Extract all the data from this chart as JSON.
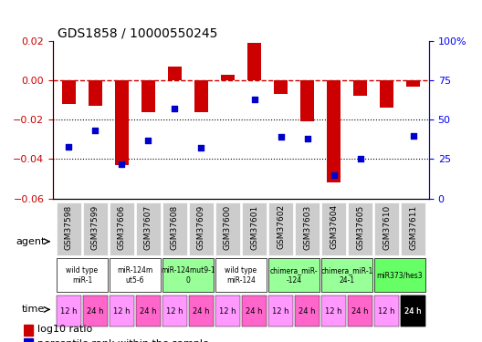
{
  "title": "GDS1858 / 10000550245",
  "samples": [
    "GSM37598",
    "GSM37599",
    "GSM37606",
    "GSM37607",
    "GSM37608",
    "GSM37609",
    "GSM37600",
    "GSM37601",
    "GSM37602",
    "GSM37603",
    "GSM37604",
    "GSM37605",
    "GSM37610",
    "GSM37611"
  ],
  "log10_ratio": [
    -0.012,
    -0.013,
    -0.043,
    -0.016,
    0.007,
    -0.016,
    0.003,
    0.019,
    -0.007,
    -0.021,
    -0.052,
    -0.008,
    -0.014,
    -0.003
  ],
  "percentile_rank": [
    33,
    43,
    22,
    37,
    57,
    32,
    null,
    63,
    39,
    38,
    15,
    25,
    null,
    40
  ],
  "ylim_left": [
    -0.06,
    0.02
  ],
  "ylim_right": [
    0,
    100
  ],
  "yticks_left": [
    -0.06,
    -0.04,
    -0.02,
    0,
    0.02
  ],
  "yticks_right": [
    0,
    25,
    50,
    75,
    100
  ],
  "agent_groups": [
    {
      "label": "wild type\nmiR-1",
      "cols": [
        0,
        1
      ],
      "color": "#ffffff"
    },
    {
      "label": "miR-124m\nut5-6",
      "cols": [
        2,
        3
      ],
      "color": "#ffffff"
    },
    {
      "label": "miR-124mut9-1\n0",
      "cols": [
        4,
        5
      ],
      "color": "#99ff99"
    },
    {
      "label": "wild type\nmiR-124",
      "cols": [
        6,
        7
      ],
      "color": "#ffffff"
    },
    {
      "label": "chimera_miR-\n-124",
      "cols": [
        8,
        9
      ],
      "color": "#99ff99"
    },
    {
      "label": "chimera_miR-1\n24-1",
      "cols": [
        10,
        11
      ],
      "color": "#99ff99"
    },
    {
      "label": "miR373/hes3",
      "cols": [
        12,
        13
      ],
      "color": "#66ff66"
    }
  ],
  "time_labels": [
    "12 h",
    "24 h",
    "12 h",
    "24 h",
    "12 h",
    "24 h",
    "12 h",
    "24 h",
    "12 h",
    "24 h",
    "12 h",
    "24 h",
    "12 h",
    "24 h"
  ],
  "time_colors": [
    "#ff99ff",
    "#ff66ff",
    "#ff99ff",
    "#ff66ff",
    "#ff99ff",
    "#ff66ff",
    "#ff99ff",
    "#ff66ff",
    "#ff99ff",
    "#ff66ff",
    "#ff99ff",
    "#ff66ff",
    "#ff99ff",
    "#000000"
  ],
  "bar_color": "#cc0000",
  "point_color": "#0000cc",
  "zero_line_color": "#cc0000",
  "grid_color": "#aaaaaa",
  "sample_bg": "#cccccc"
}
